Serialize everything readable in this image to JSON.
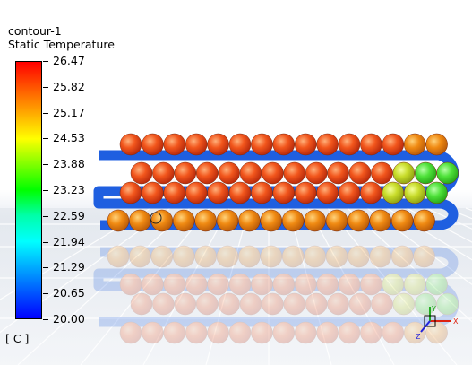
{
  "contour": {
    "name": "contour-1",
    "variable": "Static Temperature",
    "units": "[ C ]"
  },
  "colorbar": {
    "levels": [
      "26.47",
      "25.82",
      "25.17",
      "24.53",
      "23.88",
      "23.23",
      "22.59",
      "21.94",
      "21.29",
      "20.65",
      "20.00"
    ],
    "min": 20.0,
    "max": 26.47
  },
  "colors": {
    "pipe": "#1f5fe0",
    "hot_ball": "#e8401a",
    "warm_ball": "#f08a12",
    "cool_ball": "#c8e02a",
    "coolest_ball": "#55e63c"
  },
  "axis_triad": {
    "x_label": "X",
    "y_label": "Y",
    "z_label": "Z"
  }
}
